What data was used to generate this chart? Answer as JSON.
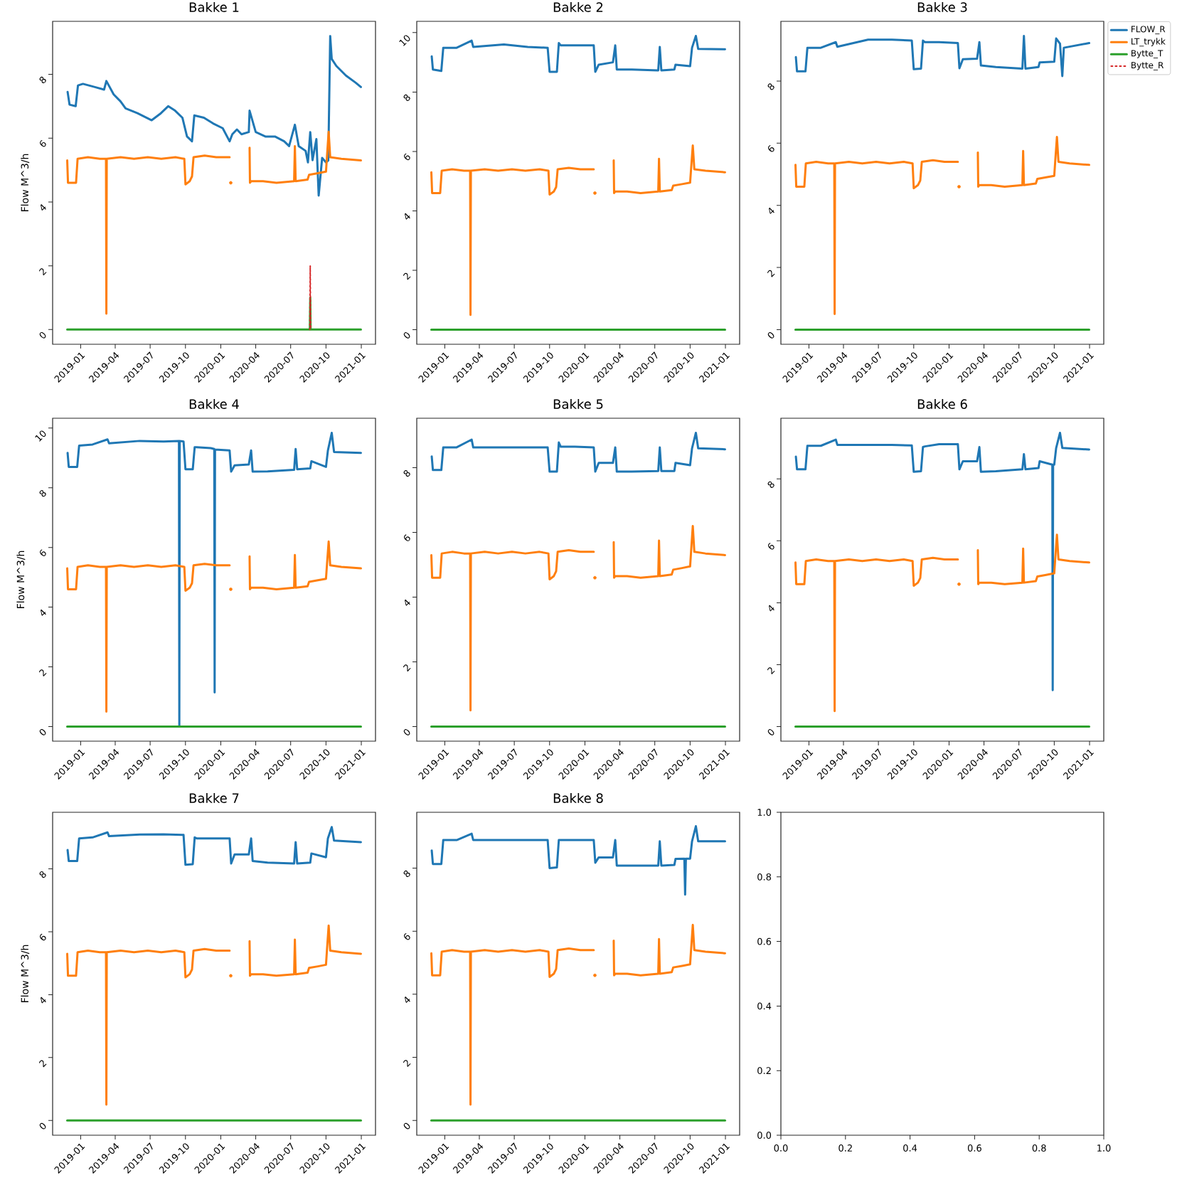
{
  "chart_data": [
    {
      "type": "line",
      "title": "Bakke 1",
      "ylabel": "Flow M^3/h",
      "xlim": [
        "2018-10-20",
        "2021-02-07"
      ],
      "xticks": [
        "2019-01",
        "2019-04",
        "2019-07",
        "2019-10",
        "2020-01",
        "2020-04",
        "2020-07",
        "2020-10",
        "2021-01"
      ],
      "ylim": [
        -0.46,
        9.66
      ],
      "yticks": [
        0,
        2,
        4,
        6,
        8
      ],
      "series": [
        {
          "color": "#1f77b4",
          "x": [
            "2018-11-28",
            "2018-12-03",
            "2018-12-19",
            "2018-12-25",
            "2019-01-07",
            "2019-02-07",
            "2019-03-03",
            "2019-03-09",
            "2019-03-28",
            "2019-04-15",
            "2019-04-28",
            "2019-05-29",
            "2019-06-10",
            "2019-07-05",
            "2019-07-29",
            "2019-08-17",
            "2019-09-04",
            "2019-09-23",
            "2019-10-05",
            "2019-10-18",
            "2019-10-24",
            "2019-11-18",
            "2019-12-12",
            "2020-01-06",
            "2020-01-24",
            "2020-01-31",
            "2020-02-12",
            "2020-02-24",
            "2020-03-14",
            "2020-03-16",
            "2020-04-01",
            "2020-04-26",
            "2020-05-21",
            "2020-06-14",
            "2020-06-27",
            "2020-07-12",
            "2020-07-22",
            "2020-08-09",
            "2020-08-15",
            "2020-08-21",
            "2020-08-27",
            "2020-09-06",
            "2020-09-12",
            "2020-09-21",
            "2020-10-01",
            "2020-10-07",
            "2020-10-12",
            "2020-10-16",
            "2020-10-28",
            "2020-11-22",
            "2020-12-17",
            "2020-12-31"
          ],
          "values": [
            7.45,
            7.05,
            7.0,
            7.65,
            7.7,
            7.6,
            7.52,
            7.79,
            7.37,
            7.15,
            6.93,
            6.78,
            6.71,
            6.56,
            6.78,
            7.0,
            6.86,
            6.64,
            6.05,
            5.9,
            6.71,
            6.64,
            6.46,
            6.31,
            5.9,
            6.12,
            6.27,
            6.12,
            6.19,
            6.86,
            6.19,
            6.05,
            6.05,
            5.9,
            5.75,
            6.42,
            5.75,
            5.6,
            5.24,
            6.19,
            5.31,
            5.97,
            4.2,
            5.38,
            5.24,
            5.3,
            9.2,
            8.48,
            8.26,
            7.96,
            7.74,
            7.6
          ]
        },
        {
          "color": "#ff7f0e",
          "x": [
            "2018-11-27",
            "2018-11-29",
            "2018-12-20",
            "2018-12-24",
            "2019-01-20",
            "2019-02-20",
            "2019-03-08",
            "2019-03-09",
            "2019-03-10",
            "2019-04-15",
            "2019-05-20",
            "2019-06-25",
            "2019-07-30",
            "2019-09-05",
            "2019-09-28",
            "2019-10-01",
            "2019-10-12",
            "2019-10-18",
            "2019-10-22",
            "2019-11-20",
            "2019-12-20",
            "2020-01-24",
            "2020-01-26",
            "2020-01-27",
            "2020-02-15",
            "2020-03-16",
            "2020-03-17",
            "2020-03-20",
            "2020-04-20",
            "2020-05-25",
            "2020-07-10",
            "2020-07-12",
            "2020-07-14",
            "2020-08-14",
            "2020-08-18",
            "2020-09-10",
            "2020-10-01",
            "2020-10-04",
            "2020-10-08",
            "2020-10-12",
            "2020-11-10",
            "2020-12-31"
          ],
          "values": [
            5.3,
            4.6,
            4.6,
            5.35,
            5.4,
            5.35,
            5.35,
            0.5,
            5.35,
            5.4,
            5.35,
            5.4,
            5.35,
            5.4,
            5.35,
            4.55,
            4.65,
            4.8,
            5.4,
            5.45,
            5.4,
            5.4,
            null,
            4.6,
            null,
            5.7,
            4.6,
            4.65,
            4.65,
            4.6,
            4.65,
            5.75,
            4.65,
            4.7,
            4.85,
            4.9,
            4.95,
            5.5,
            6.2,
            5.4,
            5.35,
            5.3
          ]
        },
        {
          "color": "#2ca02c",
          "x": [
            "2018-11-27",
            "2020-08-20",
            "2020-08-21",
            "2020-08-22",
            "2020-12-31"
          ],
          "values": [
            0,
            0,
            1,
            0,
            0
          ]
        },
        {
          "color": "#d62728",
          "line_style": "dotted",
          "x": [
            "2020-08-20",
            "2020-08-21",
            "2020-08-22"
          ],
          "values": [
            0,
            2,
            0
          ]
        }
      ]
    },
    {
      "type": "line",
      "title": "Bakke 2",
      "xlim": [
        "2018-10-20",
        "2021-02-07"
      ],
      "xticks": [
        "2019-01",
        "2019-04",
        "2019-07",
        "2019-10",
        "2020-01",
        "2020-04",
        "2020-07",
        "2020-10",
        "2021-01"
      ],
      "ylim": [
        -0.49,
        10.38
      ],
      "yticks": [
        0,
        2,
        4,
        6,
        8,
        10
      ],
      "series": [
        {
          "color": "#1f77b4",
          "x": [
            "2018-11-28",
            "2018-12-01",
            "2018-12-23",
            "2018-12-28",
            "2019-02-01",
            "2019-03-12",
            "2019-03-16",
            "2019-06-04",
            "2019-08-05",
            "2019-09-26",
            "2019-10-01",
            "2019-10-20",
            "2019-10-25",
            "2019-10-30",
            "2019-12-06",
            "2020-01-24",
            "2020-01-28",
            "2020-02-06",
            "2020-03-14",
            "2020-03-20",
            "2020-03-24",
            "2020-05-02",
            "2020-07-10",
            "2020-07-14",
            "2020-07-18",
            "2020-08-21",
            "2020-08-24",
            "2020-10-01",
            "2020-10-06",
            "2020-10-16",
            "2020-10-22",
            "2020-12-31"
          ],
          "values": [
            9.2,
            8.76,
            8.71,
            9.49,
            9.49,
            9.73,
            9.52,
            9.6,
            9.52,
            9.49,
            8.68,
            8.68,
            9.65,
            9.57,
            9.57,
            9.57,
            8.68,
            8.92,
            9.0,
            9.57,
            8.76,
            8.76,
            8.73,
            9.52,
            8.73,
            8.76,
            8.92,
            8.87,
            9.49,
            9.89,
            9.45,
            9.44
          ]
        },
        {
          "color": "#ff7f0e",
          "x": [
            "2018-11-27",
            "2018-11-29",
            "2018-12-20",
            "2018-12-24",
            "2019-01-20",
            "2019-02-20",
            "2019-03-08",
            "2019-03-09",
            "2019-03-10",
            "2019-04-15",
            "2019-05-20",
            "2019-06-25",
            "2019-07-30",
            "2019-09-05",
            "2019-09-28",
            "2019-10-01",
            "2019-10-12",
            "2019-10-18",
            "2019-10-22",
            "2019-11-20",
            "2019-12-20",
            "2020-01-24",
            "2020-01-26",
            "2020-01-27",
            "2020-02-15",
            "2020-03-16",
            "2020-03-17",
            "2020-03-20",
            "2020-04-20",
            "2020-05-25",
            "2020-07-10",
            "2020-07-12",
            "2020-07-14",
            "2020-08-14",
            "2020-08-18",
            "2020-09-10",
            "2020-10-01",
            "2020-10-04",
            "2020-10-08",
            "2020-10-12",
            "2020-11-10",
            "2020-12-31"
          ],
          "values": [
            5.3,
            4.6,
            4.6,
            5.35,
            5.4,
            5.35,
            5.35,
            0.5,
            5.35,
            5.4,
            5.35,
            5.4,
            5.35,
            5.4,
            5.35,
            4.55,
            4.65,
            4.8,
            5.4,
            5.45,
            5.4,
            5.4,
            null,
            4.6,
            null,
            5.7,
            4.6,
            4.65,
            4.65,
            4.6,
            4.65,
            5.75,
            4.65,
            4.7,
            4.85,
            4.9,
            4.95,
            5.5,
            6.2,
            5.4,
            5.35,
            5.3
          ]
        },
        {
          "color": "#2ca02c",
          "x": [
            "2018-11-27",
            "2020-12-31"
          ],
          "values": [
            0,
            0
          ]
        }
      ]
    },
    {
      "type": "line",
      "title": "Bakke 3",
      "legend": "right",
      "xlim": [
        "2018-10-20",
        "2021-02-07"
      ],
      "xticks": [
        "2019-01",
        "2019-04",
        "2019-07",
        "2019-10",
        "2020-01",
        "2020-04",
        "2020-07",
        "2020-10",
        "2021-01"
      ],
      "ylim": [
        -0.47,
        9.92
      ],
      "yticks": [
        0,
        2,
        4,
        6,
        8
      ],
      "series": [
        {
          "name": "FLOW_R",
          "color": "#1f77b4",
          "x": [
            "2018-11-28",
            "2018-12-01",
            "2018-12-23",
            "2018-12-28",
            "2019-02-01",
            "2019-03-12",
            "2019-03-16",
            "2019-06-04",
            "2019-08-05",
            "2019-09-26",
            "2019-10-01",
            "2019-10-20",
            "2019-10-25",
            "2019-10-30",
            "2019-12-06",
            "2020-01-24",
            "2020-01-28",
            "2020-02-06",
            "2020-03-14",
            "2020-03-20",
            "2020-03-24",
            "2020-05-02",
            "2020-07-10",
            "2020-07-14",
            "2020-07-18",
            "2020-08-21",
            "2020-08-24",
            "2020-10-01",
            "2020-10-06",
            "2020-10-16",
            "2020-10-22",
            "2020-10-26",
            "2020-12-31"
          ],
          "values": [
            8.77,
            8.31,
            8.31,
            9.07,
            9.07,
            9.25,
            9.1,
            9.33,
            9.33,
            9.3,
            8.38,
            8.4,
            9.3,
            9.25,
            9.25,
            9.22,
            8.41,
            8.7,
            8.72,
            9.25,
            8.5,
            8.45,
            8.4,
            9.45,
            8.4,
            8.45,
            8.6,
            8.62,
            9.37,
            9.2,
            8.16,
            9.07,
            9.22
          ]
        },
        {
          "name": "LT_trykk",
          "color": "#ff7f0e",
          "x": [
            "2018-11-27",
            "2018-11-29",
            "2018-12-20",
            "2018-12-24",
            "2019-01-20",
            "2019-02-20",
            "2019-03-08",
            "2019-03-09",
            "2019-03-10",
            "2019-04-15",
            "2019-05-20",
            "2019-06-25",
            "2019-07-30",
            "2019-09-05",
            "2019-09-28",
            "2019-10-01",
            "2019-10-12",
            "2019-10-18",
            "2019-10-22",
            "2019-11-20",
            "2019-12-20",
            "2020-01-24",
            "2020-01-26",
            "2020-01-27",
            "2020-02-15",
            "2020-03-16",
            "2020-03-17",
            "2020-03-20",
            "2020-04-20",
            "2020-05-25",
            "2020-07-10",
            "2020-07-12",
            "2020-07-14",
            "2020-08-14",
            "2020-08-18",
            "2020-09-10",
            "2020-10-01",
            "2020-10-04",
            "2020-10-08",
            "2020-10-12",
            "2020-11-10",
            "2020-12-31"
          ],
          "values": [
            5.3,
            4.6,
            4.6,
            5.35,
            5.4,
            5.35,
            5.35,
            0.5,
            5.35,
            5.4,
            5.35,
            5.4,
            5.35,
            5.4,
            5.35,
            4.55,
            4.65,
            4.8,
            5.4,
            5.45,
            5.4,
            5.4,
            null,
            4.6,
            null,
            5.7,
            4.6,
            4.65,
            4.65,
            4.6,
            4.65,
            5.75,
            4.65,
            4.7,
            4.85,
            4.9,
            4.95,
            5.5,
            6.2,
            5.4,
            5.35,
            5.3
          ]
        },
        {
          "name": "Bytte_T",
          "color": "#2ca02c",
          "x": [
            "2018-11-27",
            "2020-12-31"
          ],
          "values": [
            0,
            0
          ]
        },
        {
          "name": "Bytte_R",
          "color": "#d62728",
          "line_style": "dotted",
          "values": [
            null
          ]
        }
      ]
    },
    {
      "type": "line",
      "title": "Bakke 4",
      "ylabel": "Flow M^3/h",
      "xlim": [
        "2018-10-20",
        "2021-02-07"
      ],
      "xticks": [
        "2019-01",
        "2019-04",
        "2019-07",
        "2019-10",
        "2020-01",
        "2020-04",
        "2020-07",
        "2020-10",
        "2021-01"
      ],
      "ylim": [
        -0.49,
        10.33
      ],
      "yticks": [
        0,
        2,
        4,
        6,
        8,
        10
      ],
      "series": [
        {
          "color": "#1f77b4",
          "x": [
            "2018-11-28",
            "2018-12-01",
            "2018-12-23",
            "2018-12-28",
            "2019-02-01",
            "2019-03-12",
            "2019-03-16",
            "2019-06-04",
            "2019-08-05",
            "2019-09-14",
            "2019-09-15",
            "2019-09-16",
            "2019-09-26",
            "2019-10-01",
            "2019-10-20",
            "2019-10-25",
            "2019-10-30",
            "2019-12-06",
            "2019-12-15",
            "2019-12-16",
            "2019-12-17",
            "2020-01-24",
            "2020-01-28",
            "2020-02-06",
            "2020-03-14",
            "2020-03-20",
            "2020-03-24",
            "2020-05-02",
            "2020-07-10",
            "2020-07-14",
            "2020-07-18",
            "2020-08-21",
            "2020-08-24",
            "2020-10-01",
            "2020-10-06",
            "2020-10-16",
            "2020-10-22",
            "2020-12-31"
          ],
          "values": [
            9.17,
            8.7,
            8.7,
            9.41,
            9.45,
            9.62,
            9.49,
            9.57,
            9.55,
            9.57,
            0,
            9.57,
            9.55,
            8.62,
            8.62,
            9.36,
            9.36,
            9.33,
            9.3,
            1.14,
            9.28,
            9.25,
            8.54,
            8.75,
            8.78,
            9.25,
            8.54,
            8.55,
            8.6,
            9.3,
            8.62,
            8.65,
            8.89,
            8.7,
            9.25,
            9.84,
            9.2,
            9.17
          ]
        },
        {
          "color": "#ff7f0e",
          "x": [
            "2018-11-27",
            "2018-11-29",
            "2018-12-20",
            "2018-12-24",
            "2019-01-20",
            "2019-02-20",
            "2019-03-08",
            "2019-03-09",
            "2019-03-10",
            "2019-04-15",
            "2019-05-20",
            "2019-06-25",
            "2019-07-30",
            "2019-09-05",
            "2019-09-28",
            "2019-10-01",
            "2019-10-12",
            "2019-10-18",
            "2019-10-22",
            "2019-11-20",
            "2019-12-20",
            "2020-01-24",
            "2020-01-26",
            "2020-01-27",
            "2020-02-15",
            "2020-03-16",
            "2020-03-17",
            "2020-03-20",
            "2020-04-20",
            "2020-05-25",
            "2020-07-10",
            "2020-07-12",
            "2020-07-14",
            "2020-08-14",
            "2020-08-18",
            "2020-09-10",
            "2020-10-01",
            "2020-10-04",
            "2020-10-08",
            "2020-10-12",
            "2020-11-10",
            "2020-12-31"
          ],
          "values": [
            5.3,
            4.6,
            4.6,
            5.35,
            5.4,
            5.35,
            5.35,
            0.5,
            5.35,
            5.4,
            5.35,
            5.4,
            5.35,
            5.4,
            5.35,
            4.55,
            4.65,
            4.8,
            5.4,
            5.45,
            5.4,
            5.4,
            null,
            4.6,
            null,
            5.7,
            4.6,
            4.65,
            4.65,
            4.6,
            4.65,
            5.75,
            4.65,
            4.7,
            4.85,
            4.9,
            4.95,
            5.5,
            6.2,
            5.4,
            5.35,
            5.3
          ]
        },
        {
          "color": "#2ca02c",
          "x": [
            "2018-11-27",
            "2020-12-31"
          ],
          "values": [
            0,
            0
          ]
        }
      ]
    },
    {
      "type": "line",
      "title": "Bakke 5",
      "xlim": [
        "2018-10-20",
        "2021-02-07"
      ],
      "xticks": [
        "2019-01",
        "2019-04",
        "2019-07",
        "2019-10",
        "2020-01",
        "2020-04",
        "2020-07",
        "2020-10",
        "2021-01"
      ],
      "ylim": [
        -0.45,
        9.53
      ],
      "yticks": [
        0,
        2,
        4,
        6,
        8
      ],
      "series": [
        {
          "color": "#1f77b4",
          "x": [
            "2018-11-28",
            "2018-12-01",
            "2018-12-23",
            "2018-12-28",
            "2019-02-01",
            "2019-03-12",
            "2019-03-16",
            "2019-06-04",
            "2019-08-05",
            "2019-09-26",
            "2019-10-01",
            "2019-10-20",
            "2019-10-25",
            "2019-10-30",
            "2019-12-06",
            "2020-01-24",
            "2020-01-28",
            "2020-02-06",
            "2020-03-14",
            "2020-03-20",
            "2020-03-24",
            "2020-05-02",
            "2020-07-10",
            "2020-07-14",
            "2020-07-18",
            "2020-08-21",
            "2020-08-24",
            "2020-10-01",
            "2020-10-06",
            "2020-10-16",
            "2020-10-22",
            "2020-12-31"
          ],
          "values": [
            8.35,
            7.93,
            7.93,
            8.63,
            8.63,
            8.87,
            8.63,
            8.63,
            8.63,
            8.63,
            7.88,
            7.88,
            8.78,
            8.65,
            8.65,
            8.63,
            7.88,
            8.15,
            8.15,
            8.63,
            7.88,
            7.88,
            7.9,
            8.63,
            7.9,
            7.9,
            8.15,
            8.08,
            8.6,
            9.08,
            8.6,
            8.57
          ]
        },
        {
          "color": "#ff7f0e",
          "x": [
            "2018-11-27",
            "2018-11-29",
            "2018-12-20",
            "2018-12-24",
            "2019-01-20",
            "2019-02-20",
            "2019-03-08",
            "2019-03-09",
            "2019-03-10",
            "2019-04-15",
            "2019-05-20",
            "2019-06-25",
            "2019-07-30",
            "2019-09-05",
            "2019-09-28",
            "2019-10-01",
            "2019-10-12",
            "2019-10-18",
            "2019-10-22",
            "2019-11-20",
            "2019-12-20",
            "2020-01-24",
            "2020-01-26",
            "2020-01-27",
            "2020-02-15",
            "2020-03-16",
            "2020-03-17",
            "2020-03-20",
            "2020-04-20",
            "2020-05-25",
            "2020-07-10",
            "2020-07-12",
            "2020-07-14",
            "2020-08-14",
            "2020-08-18",
            "2020-09-10",
            "2020-10-01",
            "2020-10-04",
            "2020-10-08",
            "2020-10-12",
            "2020-11-10",
            "2020-12-31"
          ],
          "values": [
            5.3,
            4.6,
            4.6,
            5.35,
            5.4,
            5.35,
            5.35,
            0.5,
            5.35,
            5.4,
            5.35,
            5.4,
            5.35,
            5.4,
            5.35,
            4.55,
            4.65,
            4.8,
            5.4,
            5.45,
            5.4,
            5.4,
            null,
            4.6,
            null,
            5.7,
            4.6,
            4.65,
            4.65,
            4.6,
            4.65,
            5.75,
            4.65,
            4.7,
            4.85,
            4.9,
            4.95,
            5.5,
            6.2,
            5.4,
            5.35,
            5.3
          ]
        },
        {
          "color": "#2ca02c",
          "x": [
            "2018-11-27",
            "2020-12-31"
          ],
          "values": [
            0,
            0
          ]
        }
      ]
    },
    {
      "type": "line",
      "title": "Bakke 6",
      "xlim": [
        "2018-10-20",
        "2021-02-07"
      ],
      "xticks": [
        "2019-01",
        "2019-04",
        "2019-07",
        "2019-10",
        "2020-01",
        "2020-04",
        "2020-07",
        "2020-10",
        "2021-01"
      ],
      "ylim": [
        -0.47,
        9.96
      ],
      "yticks": [
        0,
        2,
        4,
        6,
        8
      ],
      "series": [
        {
          "color": "#1f77b4",
          "x": [
            "2018-11-28",
            "2018-12-01",
            "2018-12-23",
            "2018-12-28",
            "2019-02-01",
            "2019-03-12",
            "2019-03-16",
            "2019-06-04",
            "2019-08-05",
            "2019-09-26",
            "2019-10-01",
            "2019-10-20",
            "2019-10-25",
            "2019-10-30",
            "2019-12-06",
            "2020-01-24",
            "2020-01-28",
            "2020-02-06",
            "2020-03-14",
            "2020-03-20",
            "2020-03-24",
            "2020-05-02",
            "2020-07-10",
            "2020-07-14",
            "2020-07-18",
            "2020-08-21",
            "2020-08-24",
            "2020-09-26",
            "2020-09-27",
            "2020-09-28",
            "2020-10-01",
            "2020-10-06",
            "2020-10-16",
            "2020-10-22",
            "2020-12-31"
          ],
          "values": [
            8.72,
            8.31,
            8.31,
            9.07,
            9.07,
            9.27,
            9.1,
            9.1,
            9.1,
            9.08,
            8.23,
            8.25,
            9.03,
            9.05,
            9.12,
            9.12,
            8.31,
            8.57,
            8.57,
            9.03,
            8.23,
            8.25,
            8.31,
            8.8,
            8.31,
            8.35,
            8.57,
            8.46,
            1.18,
            8.46,
            8.46,
            9.0,
            9.49,
            9.0,
            8.95
          ]
        },
        {
          "color": "#ff7f0e",
          "x": [
            "2018-11-27",
            "2018-11-29",
            "2018-12-20",
            "2018-12-24",
            "2019-01-20",
            "2019-02-20",
            "2019-03-08",
            "2019-03-09",
            "2019-03-10",
            "2019-04-15",
            "2019-05-20",
            "2019-06-25",
            "2019-07-30",
            "2019-09-05",
            "2019-09-28",
            "2019-10-01",
            "2019-10-12",
            "2019-10-18",
            "2019-10-22",
            "2019-11-20",
            "2019-12-20",
            "2020-01-24",
            "2020-01-26",
            "2020-01-27",
            "2020-02-15",
            "2020-03-16",
            "2020-03-17",
            "2020-03-20",
            "2020-04-20",
            "2020-05-25",
            "2020-07-10",
            "2020-07-12",
            "2020-07-14",
            "2020-08-14",
            "2020-08-18",
            "2020-09-10",
            "2020-10-01",
            "2020-10-04",
            "2020-10-08",
            "2020-10-12",
            "2020-11-10",
            "2020-12-31"
          ],
          "values": [
            5.3,
            4.6,
            4.6,
            5.35,
            5.4,
            5.35,
            5.35,
            0.5,
            5.35,
            5.4,
            5.35,
            5.4,
            5.35,
            5.4,
            5.35,
            4.55,
            4.65,
            4.8,
            5.4,
            5.45,
            5.4,
            5.4,
            null,
            4.6,
            null,
            5.7,
            4.6,
            4.65,
            4.65,
            4.6,
            4.65,
            5.75,
            4.65,
            4.7,
            4.85,
            4.9,
            4.95,
            5.5,
            6.2,
            5.4,
            5.35,
            5.3
          ]
        },
        {
          "color": "#2ca02c",
          "x": [
            "2018-11-27",
            "2020-12-31"
          ],
          "values": [
            0,
            0
          ]
        }
      ]
    },
    {
      "type": "line",
      "title": "Bakke 7",
      "ylabel": "Flow M^3/h",
      "xlim": [
        "2018-10-20",
        "2021-02-07"
      ],
      "xticks": [
        "2019-01",
        "2019-04",
        "2019-07",
        "2019-10",
        "2020-01",
        "2020-04",
        "2020-07",
        "2020-10",
        "2021-01"
      ],
      "ylim": [
        -0.47,
        9.8
      ],
      "yticks": [
        0,
        2,
        4,
        6,
        8
      ],
      "series": [
        {
          "color": "#1f77b4",
          "x": [
            "2018-11-28",
            "2018-12-01",
            "2018-12-23",
            "2018-12-28",
            "2019-02-01",
            "2019-03-12",
            "2019-03-16",
            "2019-06-04",
            "2019-08-05",
            "2019-09-26",
            "2019-10-01",
            "2019-10-20",
            "2019-10-25",
            "2019-10-30",
            "2019-12-06",
            "2020-01-24",
            "2020-01-28",
            "2020-02-06",
            "2020-03-14",
            "2020-03-20",
            "2020-03-24",
            "2020-05-02",
            "2020-07-10",
            "2020-07-14",
            "2020-07-18",
            "2020-08-21",
            "2020-08-24",
            "2020-10-01",
            "2020-10-06",
            "2020-10-16",
            "2020-10-22",
            "2020-12-31"
          ],
          "values": [
            8.6,
            8.25,
            8.25,
            8.97,
            9.0,
            9.16,
            9.04,
            9.09,
            9.1,
            9.08,
            8.13,
            8.15,
            9.0,
            8.97,
            8.97,
            8.97,
            8.17,
            8.46,
            8.46,
            8.97,
            8.25,
            8.2,
            8.17,
            8.85,
            8.17,
            8.2,
            8.49,
            8.37,
            8.97,
            9.33,
            8.9,
            8.85
          ]
        },
        {
          "color": "#ff7f0e",
          "x": [
            "2018-11-27",
            "2018-11-29",
            "2018-12-20",
            "2018-12-24",
            "2019-01-20",
            "2019-02-20",
            "2019-03-08",
            "2019-03-09",
            "2019-03-10",
            "2019-04-15",
            "2019-05-20",
            "2019-06-25",
            "2019-07-30",
            "2019-09-05",
            "2019-09-28",
            "2019-10-01",
            "2019-10-12",
            "2019-10-18",
            "2019-10-22",
            "2019-11-20",
            "2019-12-20",
            "2020-01-24",
            "2020-01-26",
            "2020-01-27",
            "2020-02-15",
            "2020-03-16",
            "2020-03-17",
            "2020-03-20",
            "2020-04-20",
            "2020-05-25",
            "2020-07-10",
            "2020-07-12",
            "2020-07-14",
            "2020-08-14",
            "2020-08-18",
            "2020-09-10",
            "2020-10-01",
            "2020-10-04",
            "2020-10-08",
            "2020-10-12",
            "2020-11-10",
            "2020-12-31"
          ],
          "values": [
            5.3,
            4.6,
            4.6,
            5.35,
            5.4,
            5.35,
            5.35,
            0.5,
            5.35,
            5.4,
            5.35,
            5.4,
            5.35,
            5.4,
            5.35,
            4.55,
            4.65,
            4.8,
            5.4,
            5.45,
            5.4,
            5.4,
            null,
            4.6,
            null,
            5.7,
            4.6,
            4.65,
            4.65,
            4.6,
            4.65,
            5.75,
            4.65,
            4.7,
            4.85,
            4.9,
            4.95,
            5.5,
            6.2,
            5.4,
            5.35,
            5.3
          ]
        },
        {
          "color": "#2ca02c",
          "x": [
            "2018-11-27",
            "2020-12-31"
          ],
          "values": [
            0,
            0
          ]
        }
      ]
    },
    {
      "type": "line",
      "title": "Bakke 8",
      "xlim": [
        "2018-10-20",
        "2021-02-07"
      ],
      "xticks": [
        "2019-01",
        "2019-04",
        "2019-07",
        "2019-10",
        "2020-01",
        "2020-04",
        "2020-07",
        "2020-10",
        "2021-01"
      ],
      "ylim": [
        -0.47,
        9.77
      ],
      "yticks": [
        0,
        2,
        4,
        6,
        8
      ],
      "series": [
        {
          "color": "#1f77b4",
          "x": [
            "2018-11-28",
            "2018-12-01",
            "2018-12-23",
            "2018-12-28",
            "2019-02-01",
            "2019-03-12",
            "2019-03-16",
            "2019-06-04",
            "2019-08-05",
            "2019-09-26",
            "2019-10-01",
            "2019-10-20",
            "2019-10-25",
            "2019-10-30",
            "2019-12-06",
            "2020-01-24",
            "2020-01-28",
            "2020-02-06",
            "2020-03-14",
            "2020-03-20",
            "2020-03-24",
            "2020-05-02",
            "2020-07-10",
            "2020-07-14",
            "2020-07-18",
            "2020-08-21",
            "2020-08-24",
            "2020-09-16",
            "2020-09-18",
            "2020-09-20",
            "2020-10-01",
            "2020-10-06",
            "2020-10-16",
            "2020-10-22",
            "2020-12-31"
          ],
          "values": [
            8.56,
            8.13,
            8.13,
            8.89,
            8.89,
            9.09,
            8.89,
            8.89,
            8.89,
            8.89,
            8.0,
            8.02,
            8.89,
            8.89,
            8.89,
            8.89,
            8.17,
            8.34,
            8.34,
            8.89,
            8.08,
            8.08,
            8.08,
            8.85,
            8.08,
            8.1,
            8.29,
            8.3,
            7.16,
            8.3,
            8.3,
            8.85,
            9.33,
            8.85,
            8.85
          ]
        },
        {
          "color": "#ff7f0e",
          "x": [
            "2018-11-27",
            "2018-11-29",
            "2018-12-20",
            "2018-12-24",
            "2019-01-20",
            "2019-02-20",
            "2019-03-08",
            "2019-03-09",
            "2019-03-10",
            "2019-04-15",
            "2019-05-20",
            "2019-06-25",
            "2019-07-30",
            "2019-09-05",
            "2019-09-28",
            "2019-10-01",
            "2019-10-12",
            "2019-10-18",
            "2019-10-22",
            "2019-11-20",
            "2019-12-20",
            "2020-01-24",
            "2020-01-26",
            "2020-01-27",
            "2020-02-15",
            "2020-03-16",
            "2020-03-17",
            "2020-03-20",
            "2020-04-20",
            "2020-05-25",
            "2020-07-10",
            "2020-07-12",
            "2020-07-14",
            "2020-08-14",
            "2020-08-18",
            "2020-09-10",
            "2020-10-01",
            "2020-10-04",
            "2020-10-08",
            "2020-10-12",
            "2020-11-10",
            "2020-12-31"
          ],
          "values": [
            5.3,
            4.6,
            4.6,
            5.35,
            5.4,
            5.35,
            5.35,
            0.5,
            5.35,
            5.4,
            5.35,
            5.4,
            5.35,
            5.4,
            5.35,
            4.55,
            4.65,
            4.8,
            5.4,
            5.45,
            5.4,
            5.4,
            null,
            4.6,
            null,
            5.7,
            4.6,
            4.65,
            4.65,
            4.6,
            4.65,
            5.75,
            4.65,
            4.7,
            4.85,
            4.9,
            4.95,
            5.5,
            6.2,
            5.4,
            5.35,
            5.3
          ]
        },
        {
          "color": "#2ca02c",
          "x": [
            "2018-11-27",
            "2020-12-31"
          ],
          "values": [
            0,
            0
          ]
        }
      ]
    },
    {
      "type": "line",
      "xlim": [
        0,
        1
      ],
      "ylim": [
        0,
        1
      ],
      "xticks": [
        {
          "value": 0,
          "label": "0.0"
        },
        {
          "value": 0.2,
          "label": "0.2"
        },
        {
          "value": 0.4,
          "label": "0.4"
        },
        {
          "value": 0.6,
          "label": "0.6"
        },
        {
          "value": 0.8,
          "label": "0.8"
        },
        {
          "value": 1,
          "label": "1.0"
        }
      ],
      "yticks": [
        {
          "value": 0,
          "label": "0.0"
        },
        {
          "value": 0.2,
          "label": "0.2"
        },
        {
          "value": 0.4,
          "label": "0.4"
        },
        {
          "value": 0.6,
          "label": "0.6"
        },
        {
          "value": 0.8,
          "label": "0.8"
        },
        {
          "value": 1,
          "label": "1.0"
        }
      ]
    }
  ]
}
